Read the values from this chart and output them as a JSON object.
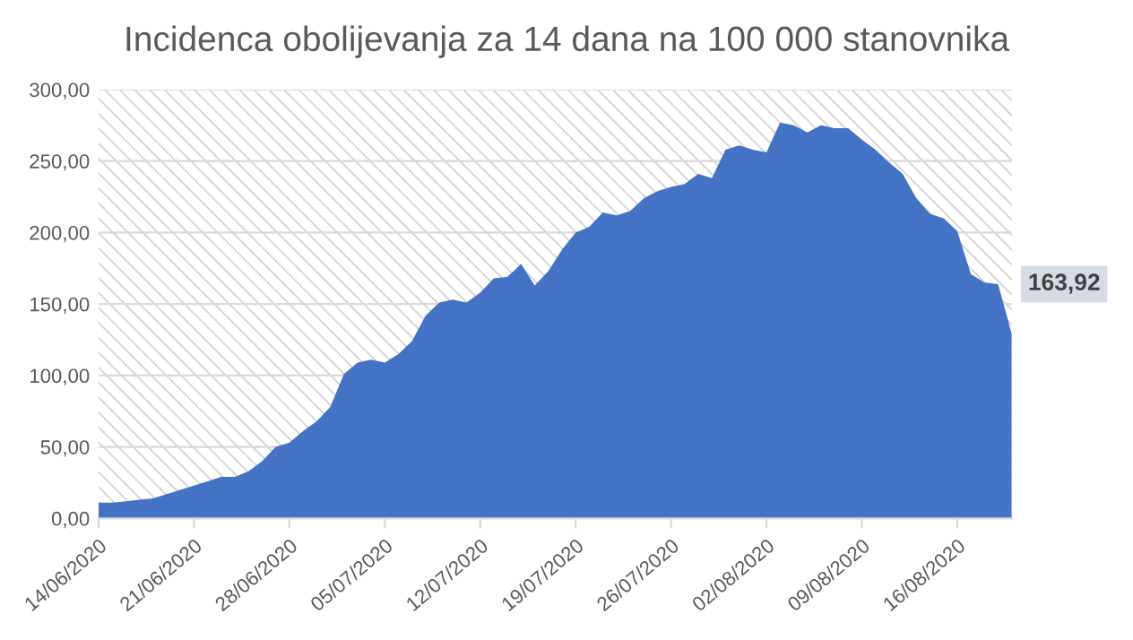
{
  "chart_data": {
    "type": "area",
    "title": "Incidenca obolijevanja za 14 dana na 100 000 stanovnika",
    "x": [
      "2020-06-14",
      "2020-06-15",
      "2020-06-16",
      "2020-06-17",
      "2020-06-18",
      "2020-06-19",
      "2020-06-20",
      "2020-06-21",
      "2020-06-22",
      "2020-06-23",
      "2020-06-24",
      "2020-06-25",
      "2020-06-26",
      "2020-06-27",
      "2020-06-28",
      "2020-06-29",
      "2020-06-30",
      "2020-07-01",
      "2020-07-02",
      "2020-07-03",
      "2020-07-04",
      "2020-07-05",
      "2020-07-06",
      "2020-07-07",
      "2020-07-08",
      "2020-07-09",
      "2020-07-10",
      "2020-07-11",
      "2020-07-12",
      "2020-07-13",
      "2020-07-14",
      "2020-07-15",
      "2020-07-16",
      "2020-07-17",
      "2020-07-18",
      "2020-07-19",
      "2020-07-20",
      "2020-07-21",
      "2020-07-22",
      "2020-07-23",
      "2020-07-24",
      "2020-07-25",
      "2020-07-26",
      "2020-07-27",
      "2020-07-28",
      "2020-07-29",
      "2020-07-30",
      "2020-07-31",
      "2020-08-01",
      "2020-08-02",
      "2020-08-03",
      "2020-08-04",
      "2020-08-05",
      "2020-08-06",
      "2020-08-07",
      "2020-08-08",
      "2020-08-09",
      "2020-08-10",
      "2020-08-11",
      "2020-08-12",
      "2020-08-13",
      "2020-08-14",
      "2020-08-15",
      "2020-08-16",
      "2020-08-17",
      "2020-08-18",
      "2020-08-19",
      "2020-08-20"
    ],
    "series": [
      {
        "color": "#4472c4",
        "values": [
          11,
          11,
          12,
          13,
          14,
          17,
          20,
          23,
          26,
          29,
          29,
          33,
          40,
          50,
          53,
          61,
          68,
          78,
          101,
          109,
          111,
          109,
          115,
          124,
          142,
          151,
          153,
          151,
          158,
          168,
          169,
          178,
          163,
          173,
          188,
          200,
          204,
          214,
          212,
          215,
          224,
          229,
          232,
          234,
          241,
          238,
          258,
          261,
          258,
          256,
          277,
          275,
          270,
          275,
          273,
          273,
          265,
          258,
          249,
          241,
          224,
          213,
          210,
          201,
          171,
          165,
          163.92,
          129
        ],
        "value_labels": [
          null,
          null,
          null,
          null,
          null,
          null,
          null,
          null,
          null,
          null,
          null,
          null,
          null,
          null,
          null,
          null,
          null,
          null,
          null,
          null,
          null,
          null,
          null,
          null,
          null,
          null,
          null,
          null,
          null,
          null,
          null,
          null,
          null,
          null,
          null,
          null,
          null,
          null,
          null,
          null,
          null,
          null,
          null,
          null,
          null,
          null,
          null,
          null,
          null,
          null,
          null,
          null,
          null,
          null,
          null,
          null,
          null,
          null,
          null,
          null,
          null,
          null,
          null,
          null,
          null,
          null,
          "163,92",
          null
        ]
      }
    ],
    "xlim": [
      "2020-06-14",
      "2020-08-20"
    ],
    "xticks": [
      {
        "value": "2020-06-14",
        "label": "14/06/2020"
      },
      {
        "value": "2020-06-21",
        "label": "21/06/2020"
      },
      {
        "value": "2020-06-28",
        "label": "28/06/2020"
      },
      {
        "value": "2020-07-05",
        "label": "05/07/2020"
      },
      {
        "value": "2020-07-12",
        "label": "12/07/2020"
      },
      {
        "value": "2020-07-19",
        "label": "19/07/2020"
      },
      {
        "value": "2020-07-26",
        "label": "26/07/2020"
      },
      {
        "value": "2020-08-02",
        "label": "02/08/2020"
      },
      {
        "value": "2020-08-09",
        "label": "09/08/2020"
      },
      {
        "value": "2020-08-16",
        "label": "16/08/2020"
      }
    ],
    "ylim": [
      0,
      300
    ],
    "yticks": [
      {
        "value": 0,
        "label": "0,00"
      },
      {
        "value": 50,
        "label": "50,00"
      },
      {
        "value": 100,
        "label": "100,00"
      },
      {
        "value": 150,
        "label": "150,00"
      },
      {
        "value": 200,
        "label": "200,00"
      },
      {
        "value": 250,
        "label": "250,00"
      },
      {
        "value": 300,
        "label": "300,00"
      }
    ],
    "grid": "y"
  }
}
